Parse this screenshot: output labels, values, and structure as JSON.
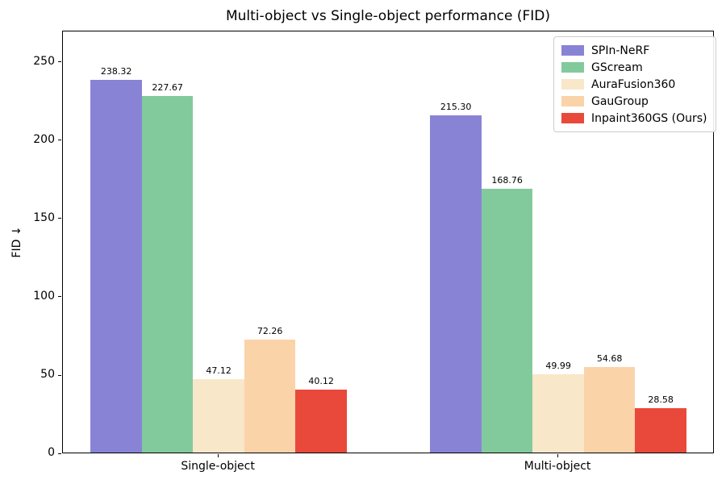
{
  "chart_data": {
    "type": "bar",
    "title": "Multi-object vs Single-object performance (FID)",
    "ylabel": "FID ↓",
    "xlabel": "",
    "categories": [
      "Single-object",
      "Multi-object"
    ],
    "series": [
      {
        "name": "SPIn-NeRF",
        "color": "#8983d6",
        "values": [
          238.32,
          215.3
        ]
      },
      {
        "name": "GScream",
        "color": "#82ca9c",
        "values": [
          227.67,
          168.76
        ]
      },
      {
        "name": "AuraFusion360",
        "color": "#f8e7c9",
        "values": [
          47.12,
          49.99
        ]
      },
      {
        "name": "GauGroup",
        "color": "#fbd3a9",
        "values": [
          72.26,
          54.68
        ]
      },
      {
        "name": "Inpaint360GS (Ours)",
        "color": "#e8493a",
        "values": [
          40.12,
          28.58
        ]
      }
    ],
    "bar_labels": [
      [
        "238.32",
        "227.67",
        "47.12",
        "72.26",
        "40.12"
      ],
      [
        "215.30",
        "168.76",
        "49.99",
        "54.68",
        "28.58"
      ]
    ],
    "yticks": [
      0,
      50,
      100,
      150,
      200,
      250
    ],
    "ylim": [
      0,
      270
    ],
    "grid": false,
    "legend_position": "upper right",
    "layout": {
      "group_center_fracs": [
        0.239,
        0.76
      ],
      "bar_width_frac": 0.0786
    }
  }
}
